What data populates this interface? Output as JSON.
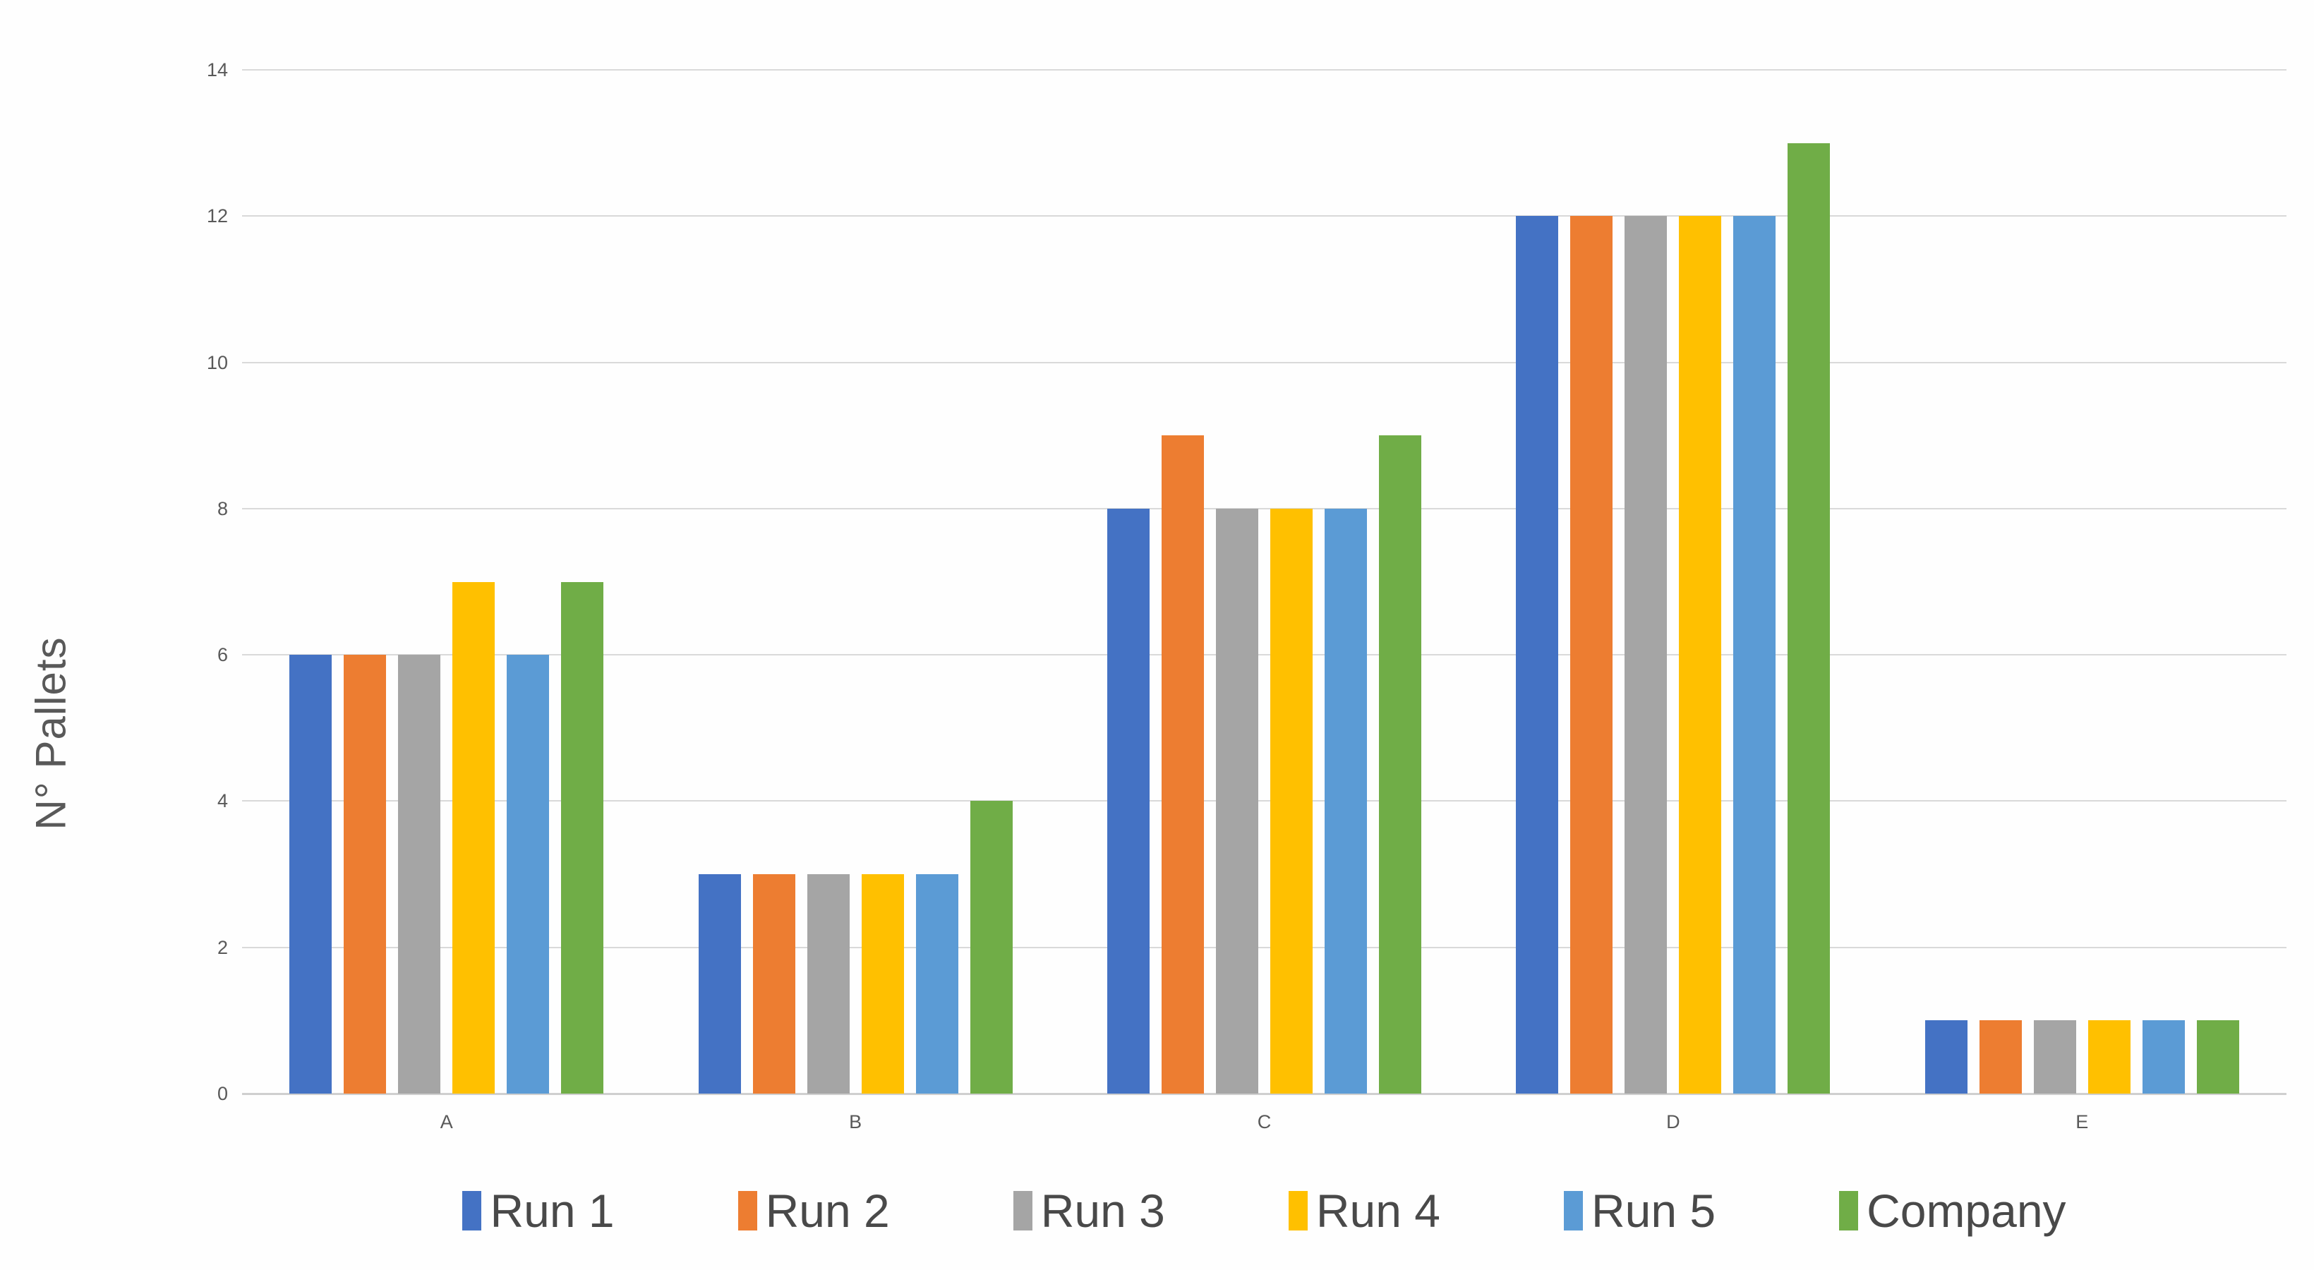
{
  "chart_data": {
    "type": "bar",
    "title": "",
    "xlabel": "",
    "ylabel": "N° Pallets",
    "categories": [
      "A",
      "B",
      "C",
      "D",
      "E"
    ],
    "series": [
      {
        "name": "Run 1",
        "color": "#4472C4",
        "values": [
          6,
          3,
          8,
          12,
          1
        ]
      },
      {
        "name": "Run 2",
        "color": "#ED7D31",
        "values": [
          6,
          3,
          9,
          12,
          1
        ]
      },
      {
        "name": "Run 3",
        "color": "#A5A5A5",
        "values": [
          6,
          3,
          8,
          12,
          1
        ]
      },
      {
        "name": "Run 4",
        "color": "#FFC000",
        "values": [
          7,
          3,
          8,
          12,
          1
        ]
      },
      {
        "name": "Run 5",
        "color": "#5B9BD5",
        "values": [
          6,
          3,
          8,
          12,
          1
        ]
      },
      {
        "name": "Company",
        "color": "#70AD47",
        "values": [
          7,
          4,
          9,
          13,
          1
        ]
      }
    ],
    "ylim": [
      0,
      14
    ],
    "yticks": [
      0,
      2,
      4,
      6,
      8,
      10,
      12,
      14
    ],
    "grid": true,
    "legend_position": "bottom"
  },
  "colors": {
    "background": "#fefefe",
    "gridline": "#d9d9d9",
    "baseline": "#cfcfcf",
    "axis_text": "#595959",
    "legend_text": "#494949"
  }
}
